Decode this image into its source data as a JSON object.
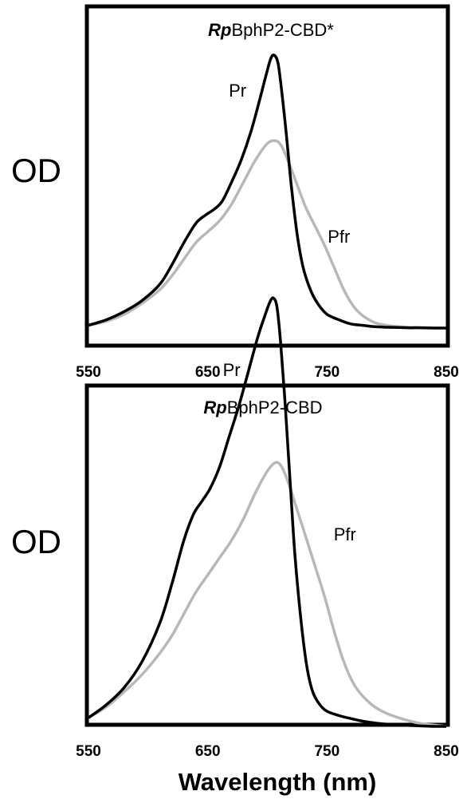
{
  "chart_data": [
    {
      "type": "line",
      "title_bold": "Rp",
      "title_rest": "BphP2-CBD*",
      "ylabel": "OD",
      "xlabel": "",
      "xlim": [
        550,
        850
      ],
      "ylim": [
        0,
        1
      ],
      "xticks": [
        "550",
        "650",
        "750",
        "850"
      ],
      "grid": false,
      "series": [
        {
          "name": "Pr",
          "color": "#000000",
          "x": [
            550,
            565,
            580,
            595,
            610,
            620,
            630,
            640,
            648,
            655,
            662,
            670,
            678,
            686,
            693,
            699,
            703,
            706,
            709,
            712,
            716,
            720,
            725,
            730,
            736,
            742,
            750,
            760,
            770,
            780,
            790,
            800,
            810,
            820,
            830,
            840,
            850
          ],
          "y": [
            0.01,
            0.03,
            0.06,
            0.1,
            0.16,
            0.23,
            0.31,
            0.38,
            0.41,
            0.43,
            0.46,
            0.53,
            0.61,
            0.71,
            0.82,
            0.92,
            0.98,
            0.99,
            0.96,
            0.86,
            0.7,
            0.52,
            0.34,
            0.22,
            0.14,
            0.09,
            0.05,
            0.03,
            0.015,
            0.01,
            0.005,
            0.003,
            0.002,
            0.001,
            0.001,
            0.0,
            0.0
          ]
        },
        {
          "name": "Pfr",
          "color": "#b8b8b8",
          "x": [
            550,
            565,
            580,
            595,
            610,
            620,
            630,
            640,
            650,
            660,
            670,
            680,
            690,
            700,
            707,
            712,
            718,
            725,
            732,
            740,
            748,
            756,
            764,
            772,
            780,
            790,
            800,
            810,
            820,
            830,
            840,
            850
          ],
          "y": [
            0.01,
            0.025,
            0.05,
            0.09,
            0.14,
            0.19,
            0.25,
            0.31,
            0.35,
            0.39,
            0.45,
            0.53,
            0.61,
            0.67,
            0.68,
            0.66,
            0.6,
            0.52,
            0.44,
            0.37,
            0.3,
            0.22,
            0.14,
            0.08,
            0.045,
            0.02,
            0.01,
            0.005,
            0.003,
            0.002,
            0.001,
            0.0
          ]
        }
      ],
      "annotations": [
        {
          "text": "Pr",
          "x": 675,
          "y": 0.84
        },
        {
          "text": "Pfr",
          "x": 760,
          "y": 0.31
        }
      ]
    },
    {
      "type": "line",
      "title_bold": "Rp",
      "title_rest": "BphP2-CBD",
      "ylabel": "OD",
      "xlabel": "Wavelength (nm)",
      "xlim": [
        550,
        850
      ],
      "ylim": [
        0,
        1
      ],
      "xticks": [
        "550",
        "650",
        "750",
        "850"
      ],
      "grid": false,
      "series": [
        {
          "name": "Pr",
          "color": "#000000",
          "x": [
            550,
            565,
            580,
            595,
            610,
            620,
            630,
            638,
            645,
            652,
            660,
            668,
            676,
            684,
            692,
            698,
            702,
            705,
            708,
            711,
            715,
            719,
            723,
            728,
            733,
            738,
            744,
            750,
            760,
            770,
            780,
            790,
            800,
            810,
            820,
            830,
            840,
            850
          ],
          "y": [
            0.02,
            0.05,
            0.09,
            0.15,
            0.24,
            0.33,
            0.43,
            0.49,
            0.52,
            0.55,
            0.6,
            0.67,
            0.74,
            0.82,
            0.9,
            0.95,
            0.98,
            0.99,
            0.97,
            0.89,
            0.74,
            0.57,
            0.4,
            0.25,
            0.14,
            0.08,
            0.05,
            0.035,
            0.025,
            0.018,
            0.012,
            0.008,
            0.005,
            0.003,
            0.002,
            0.001,
            0.0,
            0.0
          ]
        },
        {
          "name": "Pfr",
          "color": "#b8b8b8",
          "x": [
            550,
            565,
            580,
            595,
            610,
            620,
            630,
            640,
            650,
            660,
            670,
            680,
            690,
            700,
            707,
            712,
            718,
            725,
            732,
            740,
            748,
            756,
            764,
            772,
            780,
            790,
            800,
            810,
            820,
            830,
            840,
            850
          ],
          "y": [
            0.02,
            0.045,
            0.08,
            0.12,
            0.17,
            0.21,
            0.26,
            0.31,
            0.35,
            0.39,
            0.43,
            0.48,
            0.54,
            0.59,
            0.61,
            0.6,
            0.56,
            0.5,
            0.44,
            0.37,
            0.3,
            0.22,
            0.15,
            0.1,
            0.07,
            0.045,
            0.03,
            0.02,
            0.012,
            0.006,
            0.003,
            0.0
          ]
        }
      ],
      "annotations": [
        {
          "text": "Pr",
          "x": 670,
          "y": 0.81
        },
        {
          "text": "Pfr",
          "x": 765,
          "y": 0.43
        }
      ]
    }
  ]
}
